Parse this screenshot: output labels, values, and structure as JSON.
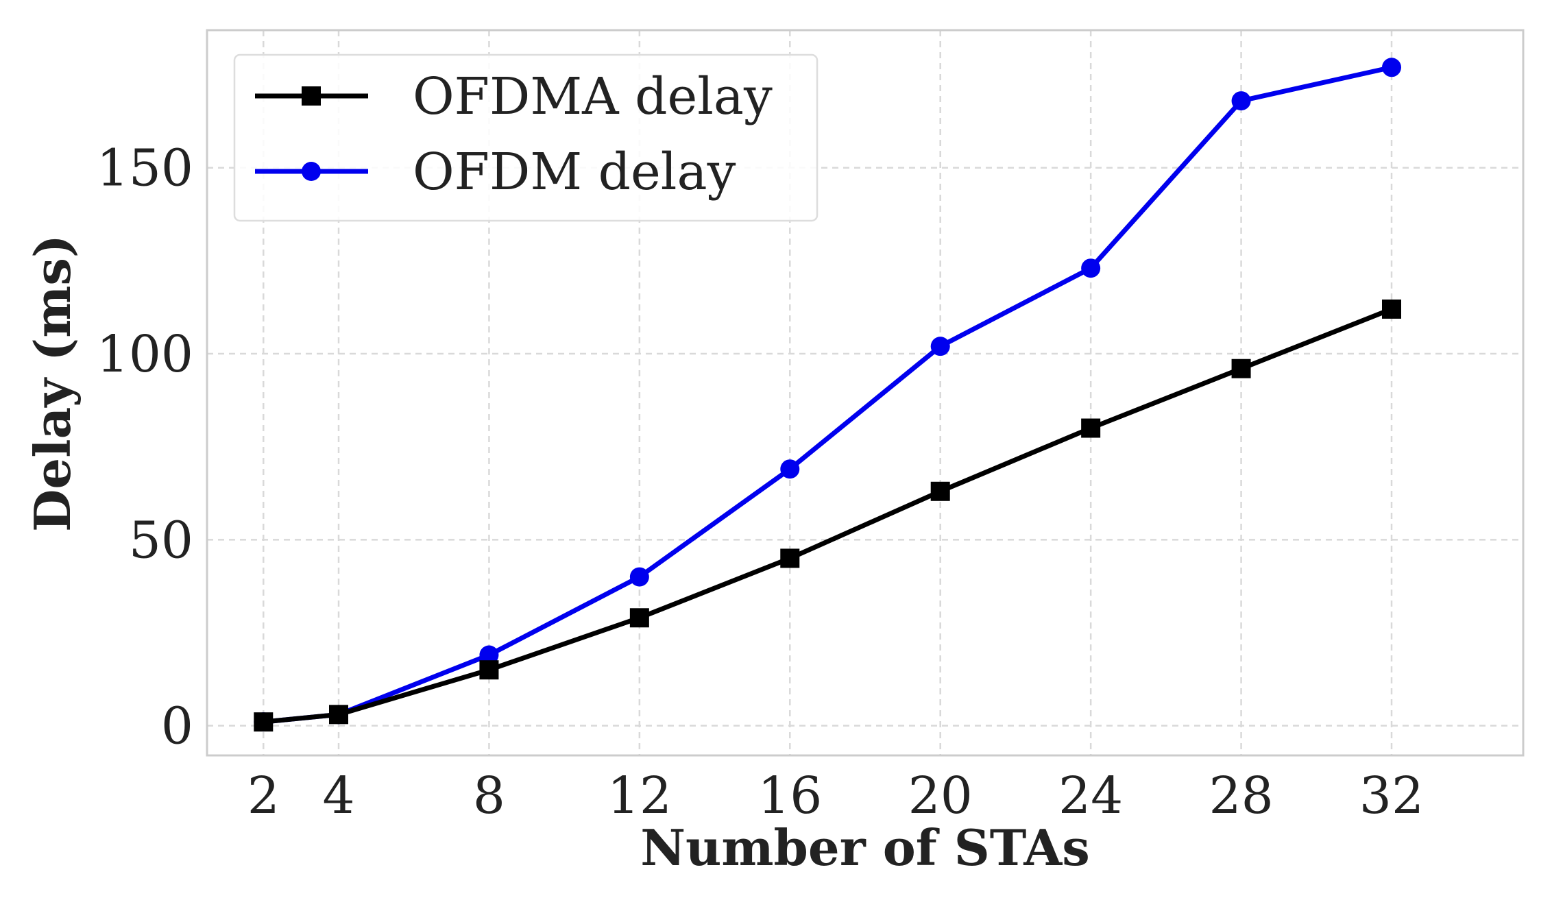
{
  "chart_data": {
    "type": "line",
    "title": "",
    "xlabel": "Number of STAs",
    "ylabel": "Delay (ms)",
    "x": [
      2,
      4,
      8,
      12,
      16,
      20,
      24,
      28,
      32
    ],
    "x_ticks": [
      "2",
      "4",
      "8",
      "12",
      "16",
      "20",
      "24",
      "28",
      "32"
    ],
    "y_ticks": [
      "0",
      "50",
      "100",
      "150"
    ],
    "xlim": [
      0.5,
      35.5
    ],
    "ylim": [
      -8,
      187
    ],
    "grid": true,
    "legend_position": "top-left",
    "series": [
      {
        "name": "OFDMA delay",
        "color": "#000000",
        "marker": "square",
        "values": [
          1,
          3,
          15,
          29,
          45,
          63,
          80,
          96,
          112
        ]
      },
      {
        "name": "OFDM delay",
        "color": "#0000ee",
        "marker": "circle",
        "values": [
          1,
          3,
          19,
          40,
          69,
          102,
          123,
          168,
          177
        ]
      }
    ]
  }
}
